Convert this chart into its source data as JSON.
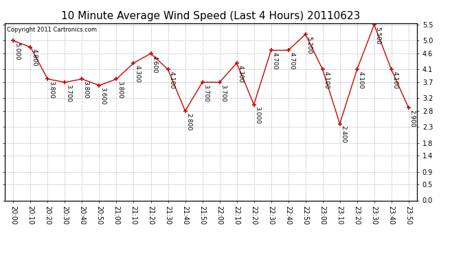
{
  "title": "10 Minute Average Wind Speed (Last 4 Hours) 20110623",
  "copyright": "Copyright 2011 Cartronics.com",
  "x_labels": [
    "20:00",
    "20:10",
    "20:20",
    "20:30",
    "20:40",
    "20:50",
    "21:00",
    "21:10",
    "21:20",
    "21:30",
    "21:40",
    "21:50",
    "22:00",
    "22:10",
    "22:20",
    "22:30",
    "22:40",
    "22:50",
    "23:00",
    "23:10",
    "23:20",
    "23:30",
    "23:40",
    "23:50"
  ],
  "y_values": [
    5.0,
    4.8,
    3.8,
    3.7,
    3.8,
    3.6,
    3.8,
    4.3,
    4.6,
    4.1,
    2.8,
    3.7,
    3.7,
    4.3,
    3.0,
    4.7,
    4.7,
    5.2,
    4.1,
    2.4,
    4.1,
    5.5,
    4.1,
    2.9
  ],
  "line_color": "#cc0000",
  "marker_color": "#cc0000",
  "bg_color": "#ffffff",
  "grid_color": "#bbbbbb",
  "yticks": [
    0.0,
    0.5,
    0.9,
    1.4,
    1.8,
    2.3,
    2.8,
    3.2,
    3.7,
    4.1,
    4.6,
    5.0,
    5.5
  ],
  "title_fontsize": 11,
  "label_fontsize": 7,
  "annot_fontsize": 6.5,
  "copyright_fontsize": 6
}
